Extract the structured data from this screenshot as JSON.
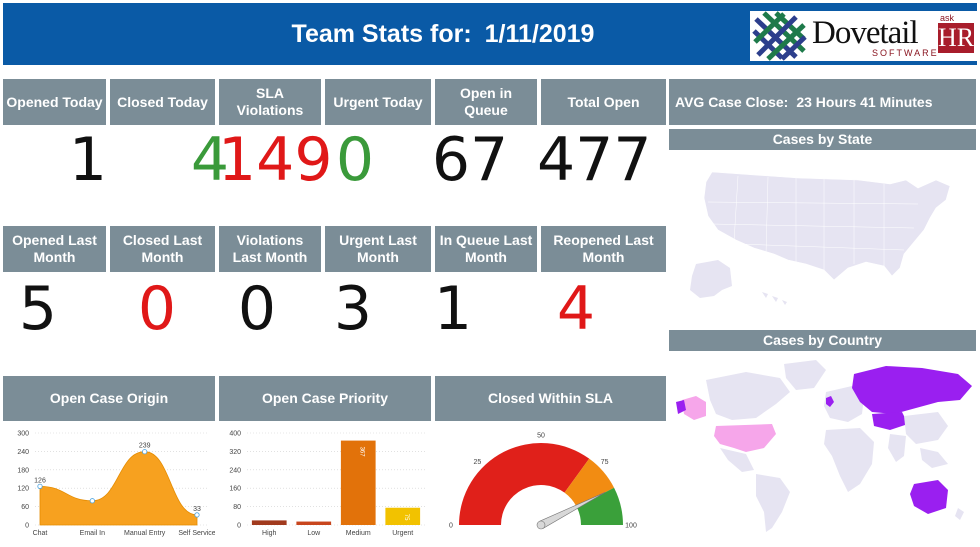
{
  "header": {
    "title_prefix": "Team Stats for:",
    "date": "1/11/2019",
    "logo": {
      "word": "Dovetail",
      "sub": "SOFTWARE",
      "ask": "ask",
      "hr": "HR"
    }
  },
  "today": [
    {
      "label": "Opened Today",
      "value": "1",
      "color": "#111111"
    },
    {
      "label": "Closed Today",
      "value": "4",
      "color": "#3a9a3a"
    },
    {
      "label": "SLA Violations",
      "value": "149",
      "color": "#e01818"
    },
    {
      "label": "Urgent Today",
      "value": "0",
      "color": "#3a9a3a"
    },
    {
      "label": "Open in Queue",
      "value": "67",
      "color": "#111111"
    },
    {
      "label": "Total Open",
      "value": "477",
      "color": "#111111"
    }
  ],
  "last_month": [
    {
      "label": "Opened Last Month",
      "value": "5",
      "color": "#111111"
    },
    {
      "label": "Closed Last Month",
      "value": "0",
      "color": "#e01818"
    },
    {
      "label": "Violations Last Month",
      "value": "0",
      "color": "#111111"
    },
    {
      "label": "Urgent Last Month",
      "value": "3",
      "color": "#111111"
    },
    {
      "label": "In Queue Last Month",
      "value": "1",
      "color": "#111111"
    },
    {
      "label": "Reopened Last Month",
      "value": "4",
      "color": "#e01818"
    }
  ],
  "avg_case_close": {
    "label": "AVG Case Close:",
    "value": "23 Hours 41 Minutes"
  },
  "cases_by_state": {
    "title": "Cases by State"
  },
  "cases_by_country": {
    "title": "Cases by Country"
  },
  "panels": {
    "origin_title": "Open Case Origin",
    "priority_title": "Open Case Priority",
    "sla_title": "Closed Within SLA"
  },
  "chart_data": [
    {
      "type": "area",
      "categories": [
        "Chat",
        "Email In",
        "Manual Entry",
        "Self Service"
      ],
      "values": [
        126,
        79,
        239,
        33
      ],
      "ylim": [
        0,
        300
      ],
      "yticks": [
        "0",
        "60",
        "120",
        "180",
        "240",
        "300"
      ],
      "data_labels": [
        "126",
        "",
        "239",
        "33"
      ],
      "color": "#f7a11f"
    },
    {
      "type": "bar",
      "categories": [
        "High",
        "Low",
        "Medium",
        "Urgent"
      ],
      "values": [
        20,
        15,
        367,
        75
      ],
      "ylim": [
        0,
        400
      ],
      "yticks": [
        "0",
        "80",
        "160",
        "240",
        "320",
        "400"
      ],
      "data_labels": [
        "",
        "",
        "367",
        "75"
      ],
      "colors": [
        "#a13a1e",
        "#c8461e",
        "#e2720a",
        "#f2c200"
      ]
    },
    {
      "type": "gauge",
      "min": 0,
      "max": 100,
      "value": 85,
      "ticks": [
        "0",
        "25",
        "50",
        "75",
        "100"
      ],
      "bands": [
        {
          "from": 0,
          "to": 70,
          "color": "#e0201a"
        },
        {
          "from": 70,
          "to": 85,
          "color": "#f28c12"
        },
        {
          "from": 85,
          "to": 100,
          "color": "#3aa03a"
        }
      ]
    }
  ]
}
